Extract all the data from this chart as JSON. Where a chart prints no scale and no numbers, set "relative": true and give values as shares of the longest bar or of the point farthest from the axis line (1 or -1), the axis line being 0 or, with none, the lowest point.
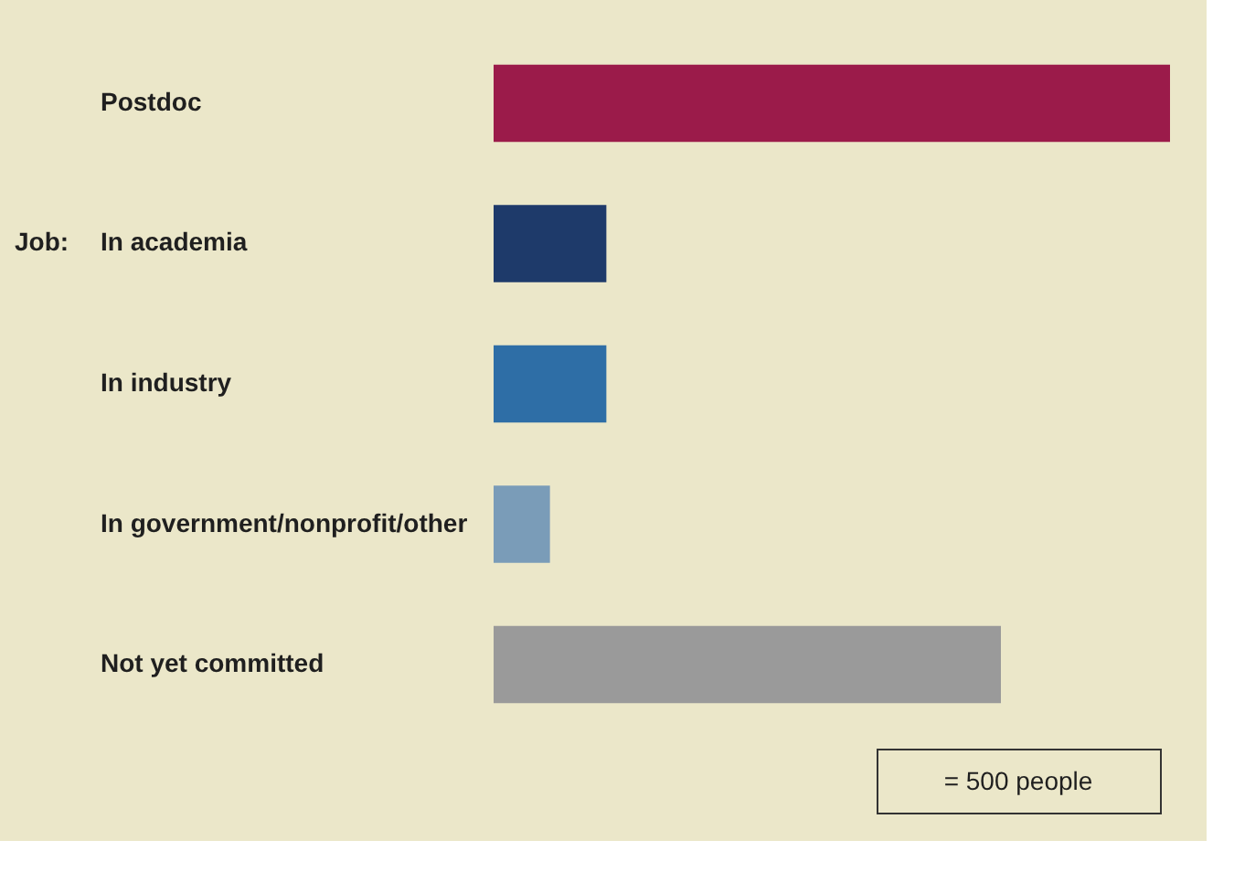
{
  "chart_data": {
    "type": "bar",
    "orientation": "horizontal",
    "relative": true,
    "categories": [
      "Postdoc",
      "In academia",
      "In industry",
      "In government/nonprofit/other",
      "Not yet committed"
    ],
    "values": [
      1,
      0.1667,
      0.1667,
      0.0833,
      0.75
    ],
    "colors": [
      "#9b1b4a",
      "#1e3a6a",
      "#2e6ea6",
      "#7a9cb8",
      "#9a9a9a"
    ],
    "annotations": [
      "Job:",
      "= 500 people"
    ]
  }
}
